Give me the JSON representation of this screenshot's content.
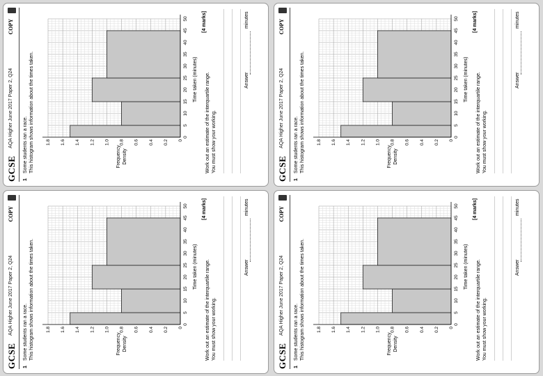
{
  "header": {
    "gcse": "GCSE",
    "source": "AQA Higher June 2017 Paper 2, Q24",
    "copy": "COPY"
  },
  "question": {
    "number": "1",
    "intro_line1": "Some students ran a race.",
    "intro_line2": "This histogram shows information about the times taken.",
    "task_line1": "Work out an estimate of the interquartile range.",
    "task_line2": "You must show your working.",
    "marks": "[4 marks]",
    "answer_label": "Answer",
    "answer_unit": "minutes"
  },
  "chart_data": {
    "type": "bar",
    "title": "",
    "xlabel": "Time taken (minutes)",
    "ylabel": "Frequency Density",
    "xlim": [
      0,
      50
    ],
    "ylim": [
      0,
      1.8
    ],
    "x_ticks": [
      "0",
      "5",
      "10",
      "15",
      "20",
      "25",
      "30",
      "35",
      "40",
      "45",
      "50"
    ],
    "y_ticks": [
      "0",
      "0.2",
      "0.4",
      "0.6",
      "0.8",
      "1.0",
      "1.2",
      "1.4",
      "1.6",
      "1.8"
    ],
    "grid": true,
    "bars": [
      {
        "x_start": 0,
        "x_end": 5,
        "value": 1.5
      },
      {
        "x_start": 5,
        "x_end": 15,
        "value": 0.8
      },
      {
        "x_start": 15,
        "x_end": 25,
        "value": 1.2
      },
      {
        "x_start": 25,
        "x_end": 45,
        "value": 1.0
      }
    ],
    "bar_color": "#c8c8c8"
  }
}
